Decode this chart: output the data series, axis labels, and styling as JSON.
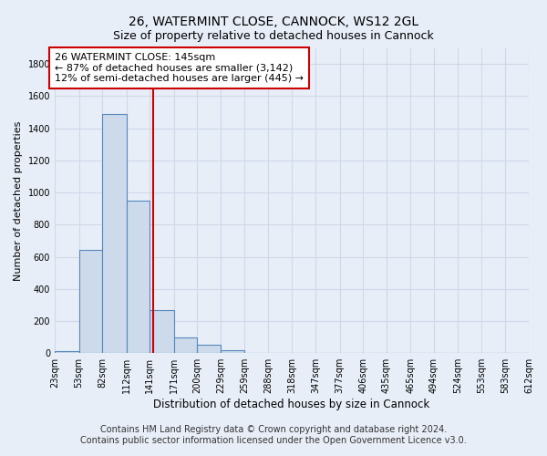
{
  "title1": "26, WATERMINT CLOSE, CANNOCK, WS12 2GL",
  "title2": "Size of property relative to detached houses in Cannock",
  "xlabel": "Distribution of detached houses by size in Cannock",
  "ylabel": "Number of detached properties",
  "bar_color": "#ccdaeb",
  "bar_edge_color": "#5588bb",
  "bin_edges": [
    23,
    53,
    82,
    112,
    141,
    171,
    200,
    229,
    259,
    288,
    318,
    347,
    377,
    406,
    435,
    465,
    494,
    524,
    553,
    583,
    612
  ],
  "bar_heights": [
    10,
    640,
    1490,
    950,
    270,
    100,
    50,
    20,
    0,
    0,
    0,
    0,
    0,
    0,
    0,
    0,
    0,
    0,
    0,
    0
  ],
  "tick_labels": [
    "23sqm",
    "53sqm",
    "82sqm",
    "112sqm",
    "141sqm",
    "171sqm",
    "200sqm",
    "229sqm",
    "259sqm",
    "288sqm",
    "318sqm",
    "347sqm",
    "377sqm",
    "406sqm",
    "435sqm",
    "465sqm",
    "494sqm",
    "524sqm",
    "553sqm",
    "583sqm",
    "612sqm"
  ],
  "vline_x": 145,
  "vline_color": "#cc0000",
  "ylim": [
    0,
    1900
  ],
  "yticks": [
    0,
    200,
    400,
    600,
    800,
    1000,
    1200,
    1400,
    1600,
    1800
  ],
  "annotation_line1": "26 WATERMINT CLOSE: 145sqm",
  "annotation_line2": "← 87% of detached houses are smaller (3,142)",
  "annotation_line3": "12% of semi-detached houses are larger (445) →",
  "annotation_box_color": "#ffffff",
  "annotation_box_edge": "#cc0000",
  "footer_text1": "Contains HM Land Registry data © Crown copyright and database right 2024.",
  "footer_text2": "Contains public sector information licensed under the Open Government Licence v3.0.",
  "bg_color": "#e8eef8",
  "plot_bg_color": "#e8eef8",
  "grid_color": "#d0d8e8",
  "title1_fontsize": 10,
  "title2_fontsize": 9,
  "xlabel_fontsize": 8.5,
  "ylabel_fontsize": 8,
  "tick_fontsize": 7,
  "annotation_fontsize": 8,
  "footer_fontsize": 7
}
